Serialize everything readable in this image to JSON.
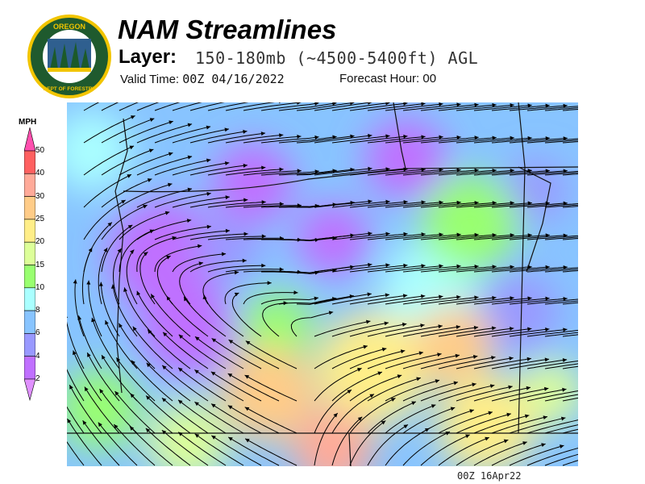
{
  "header": {
    "title": "NAM Streamlines",
    "layer_label": "Layer:",
    "layer_value": "150-180mb (~4500-5400ft) AGL",
    "valid_label": "Valid Time:",
    "valid_value": "00Z 04/16/2022",
    "forecast_label": "Forecast Hour:",
    "forecast_value": "00"
  },
  "logo": {
    "text_top": "OREGON",
    "text_bottom": "DEPARTMENT OF FORESTRY",
    "colors": {
      "ring": "#1f5a2e",
      "border": "#f2c500"
    }
  },
  "legend": {
    "unit": "MPH",
    "ticks": [
      "50",
      "40",
      "30",
      "25",
      "20",
      "15",
      "10",
      "8",
      "6",
      "4",
      "2"
    ],
    "colors": [
      "#ff4fae",
      "#ff6060",
      "#ffaa99",
      "#ffcc88",
      "#ffee88",
      "#ddff99",
      "#99ff70",
      "#aaffff",
      "#88c4ff",
      "#9999ff",
      "#c070ff",
      "#e090ff"
    ]
  },
  "footer": {
    "timestamp": "00Z 16Apr22"
  }
}
